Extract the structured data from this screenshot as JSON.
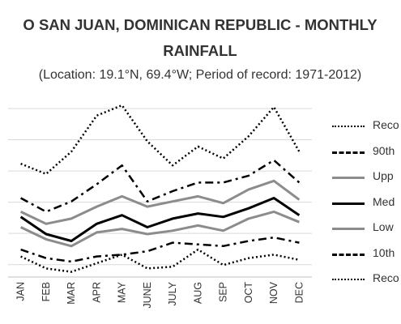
{
  "chart_data": {
    "type": "line",
    "title": "O SAN JUAN, DOMINICAN REPUBLIC - MONTHLY RAINFALL",
    "title_lines": [
      "O SAN JUAN, DOMINICAN REPUBLIC - MONTHLY",
      "RAINFALL"
    ],
    "subtitle": "(Location: 19.1°N, 69.4°W; Period of record: 1971-2012)",
    "categories": [
      "JAN",
      "FEB",
      "MAR",
      "APR",
      "MAY",
      "JUNE",
      "JULY",
      "AUG",
      "SEP",
      "OCT",
      "NOV",
      "DEC"
    ],
    "y_scale": "relative 0-10 (no printed y-axis ticks)",
    "ylim": [
      0,
      10
    ],
    "grid": true,
    "legend_position": "right",
    "series": [
      {
        "name": "Reco",
        "color": "#000000",
        "style": "dotted",
        "values": [
          6.6,
          6.0,
          7.3,
          9.4,
          10.0,
          7.9,
          6.5,
          7.6,
          6.9,
          8.2,
          9.9,
          7.3
        ]
      },
      {
        "name": "90th",
        "color": "#000000",
        "style": "dashdot",
        "values": [
          4.6,
          3.8,
          4.4,
          5.4,
          6.5,
          4.4,
          5.0,
          5.5,
          5.5,
          5.9,
          6.8,
          5.5
        ]
      },
      {
        "name": "Upp",
        "color": "#8c8c8c",
        "style": "solid",
        "values": [
          3.8,
          3.1,
          3.4,
          4.1,
          4.7,
          4.1,
          4.4,
          4.7,
          4.3,
          5.1,
          5.6,
          4.5
        ]
      },
      {
        "name": "Med",
        "color": "#000000",
        "style": "solidbold",
        "values": [
          3.5,
          2.5,
          2.1,
          3.1,
          3.6,
          2.9,
          3.4,
          3.7,
          3.5,
          4.0,
          4.6,
          3.6
        ]
      },
      {
        "name": "Low",
        "color": "#8c8c8c",
        "style": "solid",
        "values": [
          2.9,
          2.2,
          1.8,
          2.6,
          2.8,
          2.5,
          2.7,
          3.0,
          2.7,
          3.4,
          3.8,
          3.2
        ]
      },
      {
        "name": "10th",
        "color": "#000000",
        "style": "dashdot",
        "values": [
          1.6,
          1.1,
          0.9,
          1.2,
          1.3,
          1.5,
          2.0,
          1.9,
          1.8,
          2.1,
          2.3,
          2.0
        ]
      },
      {
        "name": "Reco",
        "color": "#000000",
        "style": "dotted",
        "values": [
          1.2,
          0.5,
          0.3,
          0.8,
          1.3,
          0.5,
          0.6,
          1.6,
          0.7,
          1.1,
          1.3,
          1.0
        ]
      }
    ]
  }
}
